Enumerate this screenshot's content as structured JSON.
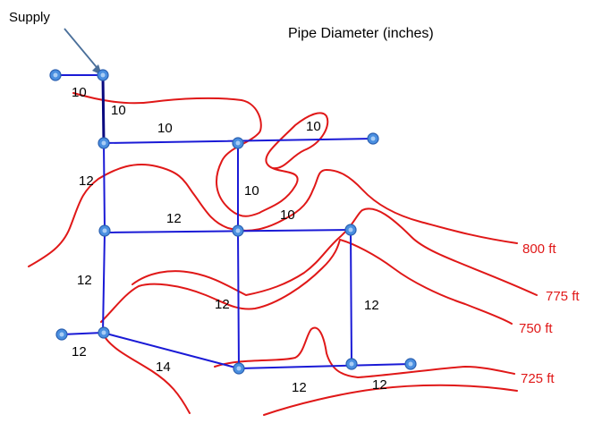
{
  "title": "Pipe Diameter (inches)",
  "supply_label": "Supply",
  "colors": {
    "pipe": "#1a1ad6",
    "pipe_thick": "#0a0a80",
    "contour": "#e01818",
    "node_fill": "#4a8fe0",
    "node_stroke": "#2a5fb0",
    "arrow": "#4a6f9a"
  },
  "contours": [
    "800 ft",
    "775 ft",
    "750 ft",
    "725 ft"
  ],
  "pipe_labels": [
    "10",
    "10",
    "10",
    "10",
    "12",
    "10",
    "12",
    "10",
    "12",
    "12",
    "12",
    "12",
    "14",
    "12",
    "12"
  ]
}
